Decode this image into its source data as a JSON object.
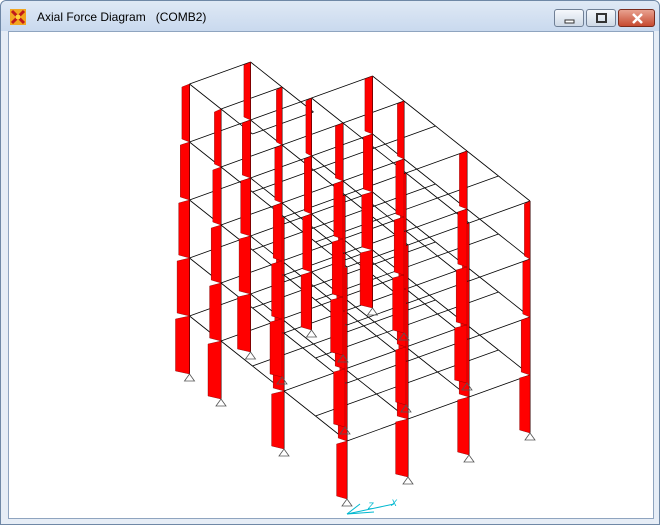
{
  "window": {
    "title": "Axial Force Diagram   (COMB2)",
    "icons": {
      "app": "sap-app-icon",
      "minimize": "minimize-icon",
      "maximize": "maximize-icon",
      "close": "close-icon"
    }
  },
  "diagram": {
    "force_color": "#ff0000",
    "frame_color": "#000000",
    "axis_color": "#00b8d0",
    "axis_labels": [
      "Z",
      "X"
    ]
  }
}
